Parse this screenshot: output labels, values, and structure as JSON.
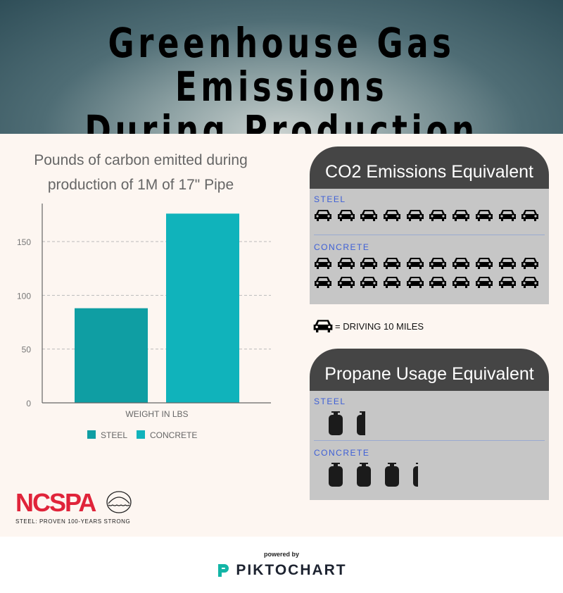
{
  "header": {
    "title_line1": "Greenhouse Gas Emissions",
    "title_line2": "During Production"
  },
  "chart_data": {
    "type": "bar",
    "title": "Pounds of carbon emitted during production of 1M of 17\" Pipe",
    "title_line1": "Pounds of carbon emitted during",
    "title_line2": "production of 1M of 17\" Pipe",
    "categories": [
      "WEIGHT IN LBS"
    ],
    "series": [
      {
        "name": "STEEL",
        "values": [
          88
        ],
        "color": "#0f9ea3"
      },
      {
        "name": "CONCRETE",
        "values": [
          176
        ],
        "color": "#10b3bb"
      }
    ],
    "xlabel": "WEIGHT IN LBS",
    "ylabel": "",
    "ylim": [
      0,
      186
    ],
    "yticks": [
      0,
      50,
      100,
      150
    ],
    "grid": true,
    "legend": "bottom"
  },
  "co2": {
    "title": "CO2 Emissions Equivalent",
    "steel_label": "STEEL",
    "steel_count": 10,
    "concrete_label": "CONCRETE",
    "concrete_count": 20,
    "icon": "car-icon",
    "legend": "= DRIVING 10 MILES"
  },
  "propane": {
    "title": "Propane Usage Equivalent",
    "steel_label": "STEEL",
    "steel_count": 1.6,
    "concrete_label": "CONCRETE",
    "concrete_count": 3.35,
    "icon": "propane-tank-icon"
  },
  "logo": {
    "name": "NCSPA",
    "tagline": "STEEL: PROVEN 100-YEARS STRONG",
    "color": "#e0243a"
  },
  "footer": {
    "powered": "powered by",
    "brand": "PIKTOCHART"
  }
}
